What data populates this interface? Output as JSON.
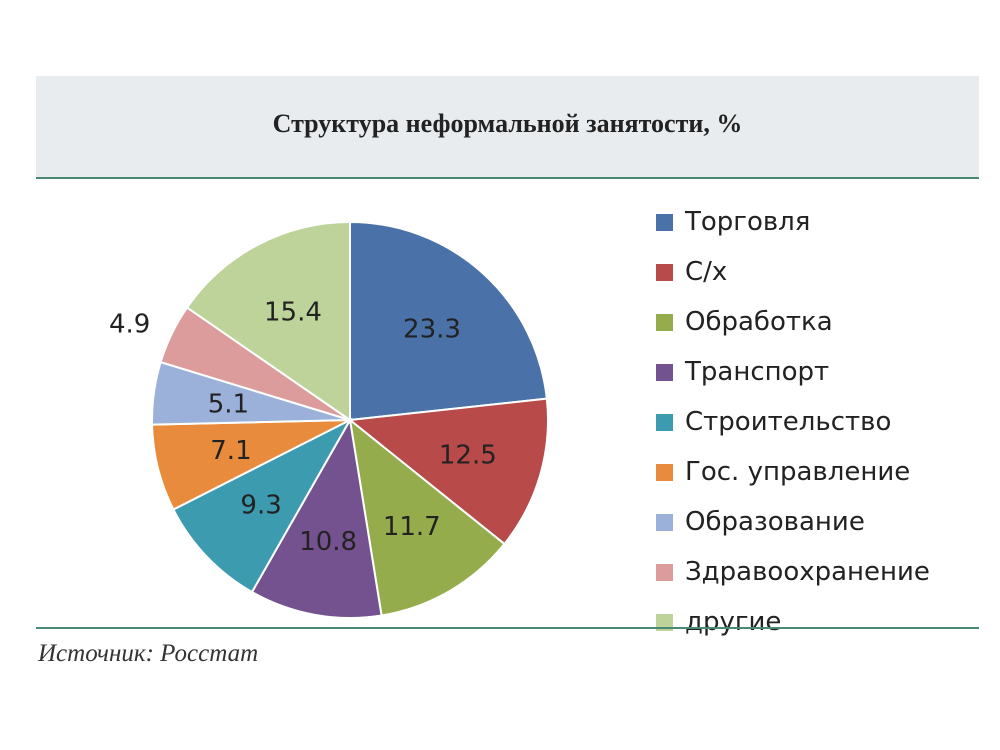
{
  "title": "Структура неформальной занятости, %",
  "source": "Источник: Росстат",
  "chart_data": {
    "type": "pie",
    "title": "Структура неформальной занятости, %",
    "labels": [
      "Торговля",
      "С/х",
      "Обработка",
      "Транспорт",
      "Строительство",
      "Гос. управление",
      "Образование",
      "Здравоохранение",
      "другие"
    ],
    "values": [
      23.3,
      12.5,
      11.7,
      10.8,
      9.3,
      7.1,
      5.1,
      4.9,
      15.4
    ],
    "value_labels": [
      "23.3",
      "12.5",
      "11.7",
      "10.8",
      "9.3",
      "7.1",
      "5.1",
      "4.9",
      "15.4"
    ],
    "colors": [
      "#4a72a8",
      "#b84a4a",
      "#94ac4c",
      "#74528f",
      "#3d9bb0",
      "#e98b3c",
      "#9bb1d9",
      "#dd9c9c",
      "#bdd39a"
    ],
    "start_angle": "12 o'clock",
    "direction": "clockwise",
    "legend_position": "right"
  }
}
